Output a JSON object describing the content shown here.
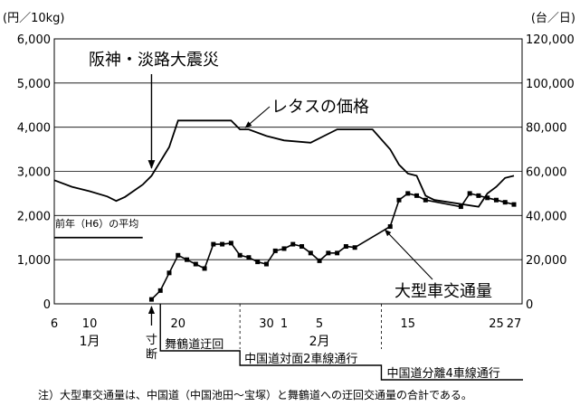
{
  "chart_data": {
    "type": "line",
    "left_axis_unit": "(円／10kg)",
    "right_axis_unit": "(台／日)",
    "left_ticks": [
      "6,000",
      "5,000",
      "4,000",
      "3,000",
      "2,000",
      "1,000",
      "0"
    ],
    "right_ticks": [
      "120,000",
      "100,000",
      "80,000",
      "60,000",
      "40,000",
      "20,000",
      "0"
    ],
    "left_ylim": [
      0,
      6000
    ],
    "right_ylim": [
      0,
      120000
    ],
    "grid": true,
    "x_tick_labels": [
      {
        "label": "6",
        "day": 6
      },
      {
        "label": "10",
        "day": 10
      },
      {
        "label": "20",
        "day": 20
      },
      {
        "label": "30",
        "day": 30
      },
      {
        "label": "1",
        "day": 32
      },
      {
        "label": "5",
        "day": 36
      },
      {
        "label": "15",
        "day": 46
      },
      {
        "label": "25",
        "day": 56
      },
      {
        "label": "27",
        "day": 58
      }
    ],
    "month_labels": [
      {
        "label": "1月",
        "day": 10
      },
      {
        "label": "2月",
        "day": 36
      }
    ],
    "x_range": [
      6,
      58
    ],
    "series": [
      {
        "name": "レタスの価格",
        "axis": "left",
        "style": "line",
        "points": [
          [
            6,
            2800
          ],
          [
            8,
            2650
          ],
          [
            10,
            2550
          ],
          [
            12,
            2430
          ],
          [
            13,
            2330
          ],
          [
            14,
            2420
          ],
          [
            16,
            2700
          ],
          [
            17,
            2900
          ],
          [
            19,
            3550
          ],
          [
            20,
            4150
          ],
          [
            26,
            4150
          ],
          [
            27,
            3950
          ],
          [
            28,
            3950
          ],
          [
            30,
            3800
          ],
          [
            32,
            3700
          ],
          [
            35,
            3650
          ],
          [
            37,
            3850
          ],
          [
            38,
            3950
          ],
          [
            42,
            3950
          ],
          [
            44,
            3500
          ],
          [
            45,
            3150
          ],
          [
            46,
            2950
          ],
          [
            47,
            2900
          ],
          [
            48,
            2450
          ],
          [
            49,
            2350
          ],
          [
            54,
            2200
          ],
          [
            55,
            2500
          ],
          [
            56,
            2650
          ],
          [
            57,
            2850
          ],
          [
            58,
            2900
          ]
        ]
      },
      {
        "name": "大型車交通量",
        "axis": "right",
        "style": "line-markers",
        "points": [
          [
            17,
            2000
          ],
          [
            18,
            6000
          ],
          [
            19,
            14000
          ],
          [
            20,
            22000
          ],
          [
            21,
            20000
          ],
          [
            22,
            18000
          ],
          [
            23,
            16000
          ],
          [
            24,
            27000
          ],
          [
            25,
            27000
          ],
          [
            26,
            27500
          ],
          [
            27,
            22000
          ],
          [
            28,
            21000
          ],
          [
            29,
            19000
          ],
          [
            30,
            18000
          ],
          [
            31,
            24000
          ],
          [
            32,
            25000
          ],
          [
            33,
            27000
          ],
          [
            34,
            26000
          ],
          [
            35,
            23000
          ],
          [
            36,
            19500
          ],
          [
            37,
            23000
          ],
          [
            38,
            23000
          ],
          [
            39,
            26000
          ],
          [
            40,
            25500
          ],
          [
            44,
            35000
          ],
          [
            45,
            47000
          ],
          [
            46,
            50000
          ],
          [
            47,
            49000
          ],
          [
            48,
            47000
          ],
          [
            52,
            44000
          ],
          [
            53,
            50000
          ],
          [
            54,
            49000
          ],
          [
            55,
            48000
          ],
          [
            56,
            47000
          ],
          [
            57,
            46000
          ],
          [
            58,
            45000
          ]
        ]
      },
      {
        "name": "前年（H6）の平均",
        "axis": "right",
        "style": "flat",
        "points": [
          [
            6,
            30000
          ],
          [
            16,
            30000
          ]
        ]
      }
    ],
    "annotations": {
      "quake": "阪神・淡路大震災",
      "lettuce_price": "レタスの価格",
      "heavy_vehicle_traffic": "大型車交通量",
      "prev_year_avg": "前年（H6）の平均",
      "cut_off_line1": "寸",
      "cut_off_line2": "断",
      "maizuru_detour": "舞鶴道迂回",
      "chugoku_2lane": "中国道対面2車線通行",
      "chugoku_4lane": "中国道分離4車線通行"
    },
    "footnote": "注）大型車交通量は、中国道（中国池田～宝塚）と舞鶴道への迂回交通量の合計である。"
  }
}
